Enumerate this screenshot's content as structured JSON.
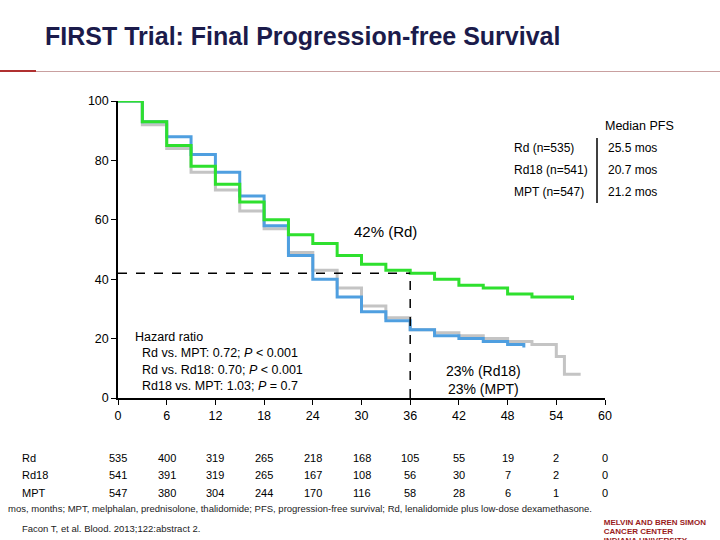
{
  "chart_data": {
    "type": "line",
    "title": "FIRST Trial: Final Progression-free Survival",
    "xlim": [
      0,
      60
    ],
    "xticks": [
      0,
      6,
      12,
      18,
      24,
      30,
      36,
      42,
      48,
      54,
      60
    ],
    "ylim": [
      0,
      100
    ],
    "yticks": [
      0,
      20,
      40,
      60,
      80,
      100
    ],
    "grid": false,
    "legend_title": "Median PFS",
    "series": [
      {
        "name": "Rd",
        "n_label": "(n=535)",
        "median_label": "25.5 mos",
        "color": "#2ee02e",
        "x": [
          0,
          3,
          6,
          9,
          12,
          15,
          18,
          21,
          24,
          27,
          30,
          33,
          36,
          39,
          42,
          45,
          48,
          51,
          54,
          56
        ],
        "values": [
          100,
          93,
          85,
          78,
          72,
          66,
          60,
          55,
          52,
          48,
          45,
          43,
          42,
          40,
          38,
          37,
          35,
          34,
          34,
          33
        ]
      },
      {
        "name": "Rd18",
        "n_label": "(n=541)",
        "median_label": "20.7 mos",
        "color": "#4f9fe0",
        "x": [
          0,
          3,
          6,
          9,
          12,
          15,
          18,
          21,
          24,
          27,
          30,
          33,
          36,
          39,
          42,
          45,
          48,
          50
        ],
        "values": [
          100,
          93,
          88,
          82,
          76,
          68,
          58,
          48,
          40,
          34,
          29,
          26,
          23,
          21,
          20,
          19,
          18,
          17
        ]
      },
      {
        "name": "MPT",
        "n_label": "(n=547)",
        "median_label": "21.2 mos",
        "color": "#c4c4c4",
        "x": [
          0,
          3,
          6,
          9,
          12,
          15,
          18,
          21,
          24,
          27,
          30,
          33,
          36,
          39,
          42,
          45,
          48,
          51,
          54,
          55,
          57
        ],
        "values": [
          100,
          92,
          84,
          76,
          70,
          63,
          57,
          49,
          43,
          37,
          31,
          27,
          23,
          22,
          21,
          20,
          19,
          18,
          14,
          8,
          8
        ]
      }
    ],
    "landmark_month": 36,
    "landmarks": [
      {
        "series": "Rd",
        "value": 42,
        "label": "42% (Rd)"
      },
      {
        "series": "Rd18",
        "value": 23,
        "label": "23% (Rd18)"
      },
      {
        "series": "MPT",
        "value": 23,
        "label": "23% (MPT)"
      }
    ],
    "hazard_text": [
      "Hazard ratio",
      "Rd vs. MPT: 0.72; P < 0.001",
      "Rd vs. Rd18: 0.70; P < 0.001",
      "Rd18 vs. MPT: 1.03; P = 0.7"
    ],
    "risk_table": {
      "x": [
        0,
        6,
        12,
        18,
        24,
        30,
        36,
        42,
        48,
        54,
        60
      ],
      "rows": [
        {
          "name": "Rd",
          "values": [
            535,
            400,
            319,
            265,
            218,
            168,
            105,
            55,
            19,
            2,
            0
          ]
        },
        {
          "name": "Rd18",
          "values": [
            541,
            391,
            319,
            265,
            167,
            108,
            56,
            30,
            7,
            2,
            0
          ]
        },
        {
          "name": "MPT",
          "values": [
            547,
            380,
            304,
            244,
            170,
            116,
            58,
            28,
            6,
            1,
            0
          ]
        }
      ]
    },
    "footnotes": [
      "mos, months; MPT, melphalan, prednisolone, thalidomide; PFS, progression-free survival; Rd, lenalidomide plus low-dose dexamethasone.",
      "Facon T, et al. Blood. 2013;122:abstract 2."
    ],
    "logo": [
      "MELVIN AND BREN SIMON",
      "CANCER CENTER",
      "INDIANA UNIVERSITY"
    ]
  }
}
